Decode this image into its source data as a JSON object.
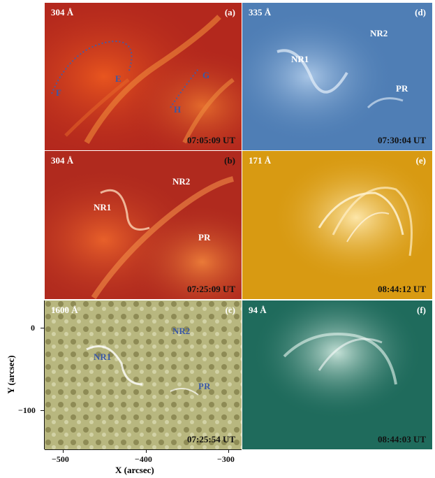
{
  "panels": {
    "a": {
      "letter": "(a)",
      "wavelength": "304 Å",
      "time": "07:05:09 UT",
      "labels": {
        "F": "F",
        "E": "E",
        "G": "G",
        "H": "H"
      }
    },
    "b": {
      "letter": "(b)",
      "wavelength": "304 Å",
      "time": "07:25:09 UT",
      "labels": {
        "NR1": "NR1",
        "NR2": "NR2",
        "PR": "PR"
      }
    },
    "c": {
      "letter": "(c)",
      "wavelength": "1600 Å",
      "time": "07:25:54 UT",
      "labels": {
        "NR1": "NR1",
        "NR2": "NR2",
        "PR": "PR"
      }
    },
    "d": {
      "letter": "(d)",
      "wavelength": "335 Å",
      "time": "07:30:04 UT",
      "labels": {
        "NR1": "NR1",
        "NR2": "NR2",
        "PR": "PR"
      }
    },
    "e": {
      "letter": "(e)",
      "wavelength": "171 Å",
      "time": "08:44:12 UT"
    },
    "f": {
      "letter": "(f)",
      "wavelength": "94 Å",
      "time": "08:44:03 UT"
    }
  },
  "axes": {
    "xlabel": "X (arcsec)",
    "ylabel": "Y (arcsec)",
    "xticks": [
      "−500",
      "−400",
      "−300"
    ],
    "yticks": [
      "0",
      "−100"
    ]
  },
  "colors": {
    "blue_label": "#3a58a6"
  }
}
